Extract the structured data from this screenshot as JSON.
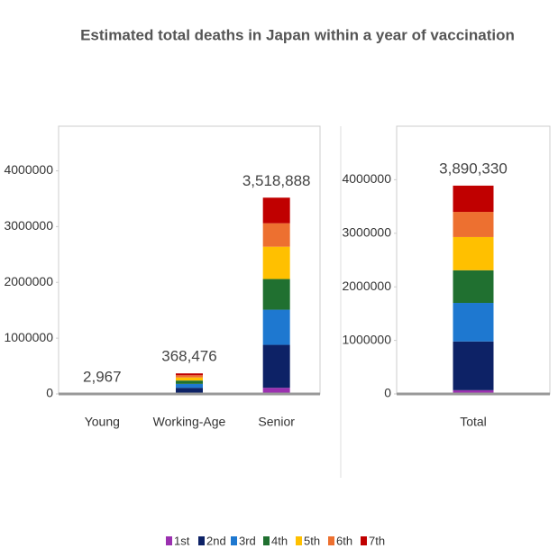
{
  "chart_data": [
    {
      "type": "bar",
      "stacked": true,
      "title": "Estimated total deaths in Japan within a year of vaccination",
      "categories": [
        "Young",
        "Working-Age",
        "Senior"
      ],
      "series": [
        {
          "name": "1st",
          "color": "#9b30b0",
          "values": [
            0,
            20000,
            110000
          ]
        },
        {
          "name": "2nd",
          "color": "#0d2266",
          "values": [
            0,
            90000,
            770000
          ]
        },
        {
          "name": "3rd",
          "color": "#1e78d0",
          "values": [
            0,
            70000,
            630000
          ]
        },
        {
          "name": "4th",
          "color": "#207030",
          "values": [
            0,
            60000,
            550000
          ]
        },
        {
          "name": "5th",
          "color": "#ffc000",
          "values": [
            0,
            55000,
            580000
          ]
        },
        {
          "name": "6th",
          "color": "#ed7030",
          "values": [
            1500,
            40000,
            420000
          ]
        },
        {
          "name": "7th",
          "color": "#c00000",
          "values": [
            1467,
            33476,
            458888
          ]
        }
      ],
      "totals": [
        2967,
        368476,
        3518888
      ],
      "value_labels": [
        "2,967",
        "368,476",
        "3,518,888"
      ],
      "ylim": [
        0,
        4800000
      ],
      "yticks": [
        0,
        1000000,
        2000000,
        3000000,
        4000000
      ],
      "grid": false
    },
    {
      "type": "bar",
      "stacked": true,
      "categories": [
        "Total"
      ],
      "series": [
        {
          "values": [
            70000
          ]
        },
        {
          "values": [
            910000
          ]
        },
        {
          "values": [
            720000
          ]
        },
        {
          "values": [
            610000
          ]
        },
        {
          "values": [
            620000
          ]
        },
        {
          "values": [
            470000
          ]
        },
        {
          "values": [
            490000
          ]
        }
      ],
      "totals": [
        3890330
      ],
      "value_labels": [
        "3,890,330"
      ],
      "ylim": [
        0,
        5000000
      ],
      "yticks": [
        0,
        1000000,
        2000000,
        3000000,
        4000000
      ],
      "grid": false
    }
  ]
}
